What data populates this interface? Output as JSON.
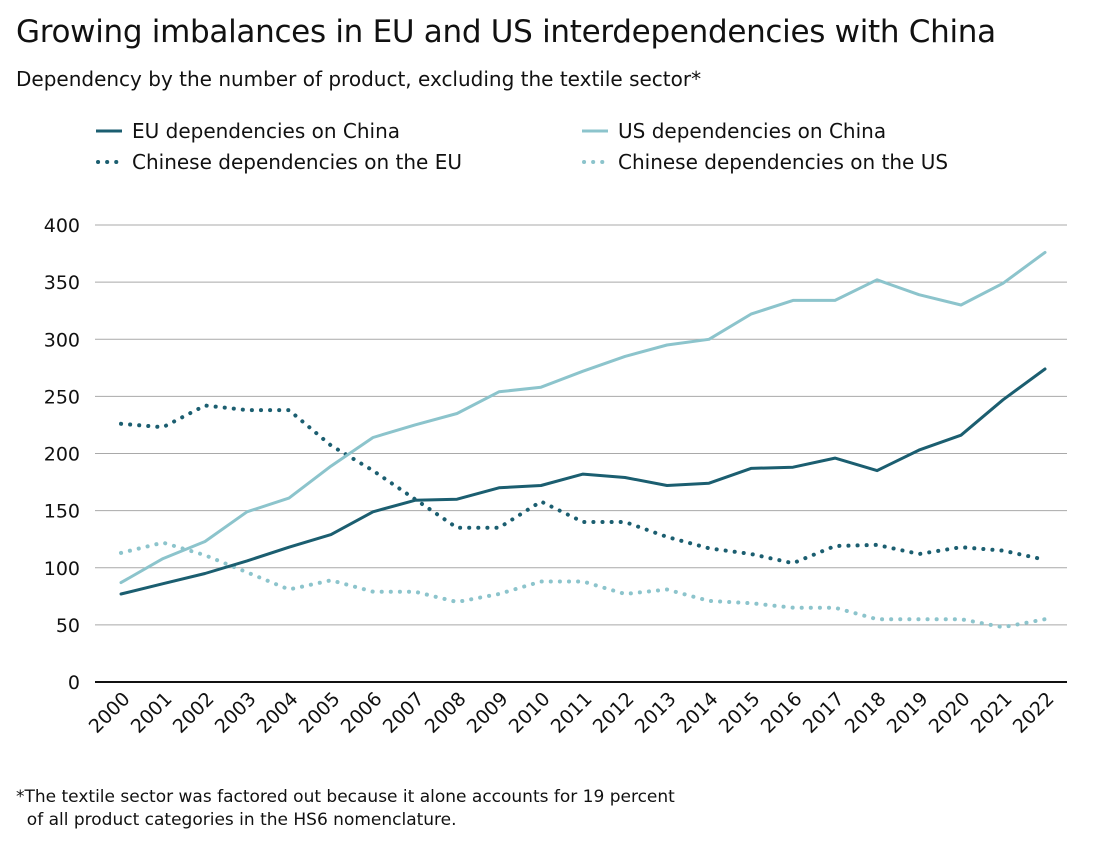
{
  "title": "Growing imbalances in EU and US interdependencies with China",
  "subtitle": "Dependency by the number of product, excluding the textile sector*",
  "legend": [
    {
      "label": "EU dependencies on China",
      "color": "#1b5e70",
      "style": "solid"
    },
    {
      "label": "US dependencies on China",
      "color": "#8cc4cc",
      "style": "solid"
    },
    {
      "label": "Chinese dependencies on the EU",
      "color": "#1b5e70",
      "style": "dotted"
    },
    {
      "label": "Chinese dependencies on the US",
      "color": "#8cc4cc",
      "style": "dotted"
    }
  ],
  "footnote": "*The textile sector was factored out because it alone accounts for 19 percent\n  of all product categories in the HS6 nomenclature.",
  "chart_data": {
    "type": "line",
    "title": "Growing imbalances in EU and US interdependencies with China",
    "xlabel": "",
    "ylabel": "",
    "ylim": [
      0,
      400
    ],
    "yticks": [
      0,
      50,
      100,
      150,
      200,
      250,
      300,
      350,
      400
    ],
    "grid": true,
    "legend_position": "top",
    "categories": [
      "2000",
      "2001",
      "2002",
      "2003",
      "2004",
      "2005",
      "2006",
      "2007",
      "2008",
      "2009",
      "2010",
      "2011",
      "2012",
      "2013",
      "2014",
      "2015",
      "2016",
      "2017",
      "2018",
      "2019",
      "2020",
      "2021",
      "2022"
    ],
    "series": [
      {
        "name": "EU dependencies on China",
        "color": "#1b5e70",
        "style": "solid",
        "values": [
          77,
          86,
          95,
          106,
          118,
          129,
          149,
          159,
          160,
          170,
          172,
          182,
          179,
          172,
          174,
          187,
          188,
          196,
          185,
          203,
          216,
          247,
          274
        ]
      },
      {
        "name": "US dependencies on China",
        "color": "#8cc4cc",
        "style": "solid",
        "values": [
          87,
          108,
          123,
          149,
          161,
          189,
          214,
          225,
          235,
          254,
          258,
          272,
          285,
          295,
          300,
          322,
          334,
          334,
          352,
          339,
          330,
          349,
          376
        ]
      },
      {
        "name": "Chinese dependencies on the EU",
        "color": "#1b5e70",
        "style": "dotted",
        "values": [
          226,
          223,
          242,
          238,
          238,
          207,
          185,
          160,
          135,
          135,
          158,
          140,
          140,
          127,
          117,
          112,
          104,
          119,
          120,
          112,
          118,
          115,
          107
        ]
      },
      {
        "name": "Chinese dependencies on the US",
        "color": "#8cc4cc",
        "style": "dotted",
        "values": [
          113,
          122,
          111,
          96,
          81,
          89,
          79,
          79,
          70,
          77,
          88,
          88,
          77,
          81,
          71,
          69,
          65,
          65,
          55,
          55,
          55,
          48,
          55
        ]
      }
    ]
  }
}
